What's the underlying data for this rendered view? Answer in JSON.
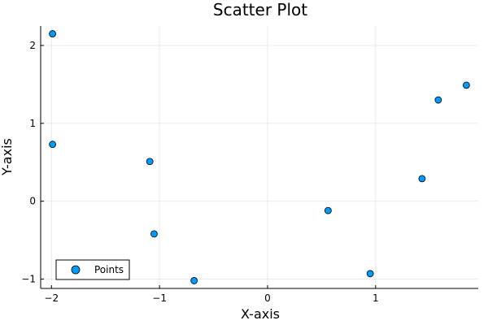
{
  "chart_data": {
    "type": "scatter",
    "title": "Scatter Plot",
    "xlabel": "X-axis",
    "ylabel": "Y-axis",
    "xlim": [
      -2.1,
      1.95
    ],
    "ylim": [
      -1.12,
      2.25
    ],
    "xticks": [
      -2,
      -1,
      0,
      1
    ],
    "yticks": [
      -1,
      0,
      1,
      2
    ],
    "xtick_labels": [
      "−2",
      "−1",
      "0",
      "1"
    ],
    "ytick_labels": [
      "−1",
      "0",
      "1",
      "2"
    ],
    "grid": true,
    "legend_position": "bottom-left",
    "series": [
      {
        "name": "Points",
        "color": "#009AF9",
        "points": [
          {
            "x": -1.99,
            "y": 2.15
          },
          {
            "x": -1.99,
            "y": 0.73
          },
          {
            "x": -1.09,
            "y": 0.51
          },
          {
            "x": -1.05,
            "y": -0.42
          },
          {
            "x": -0.68,
            "y": -1.02
          },
          {
            "x": 0.56,
            "y": -0.12
          },
          {
            "x": 0.95,
            "y": -0.93
          },
          {
            "x": 1.43,
            "y": 0.29
          },
          {
            "x": 1.58,
            "y": 1.3
          },
          {
            "x": 1.84,
            "y": 1.49
          }
        ]
      }
    ]
  }
}
